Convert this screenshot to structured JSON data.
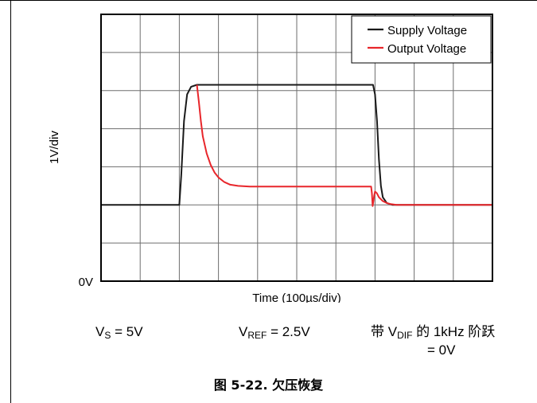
{
  "chart_data": {
    "type": "line",
    "title": "",
    "xlabel": "Time (100µs/div)",
    "ylabel": "1V/div",
    "y_zero_label": "0V",
    "x_divisions": 10,
    "y_divisions": 7,
    "xlim": [
      0,
      10
    ],
    "ylim": [
      0,
      7
    ],
    "grid": true,
    "legend_position": "top-right",
    "series": [
      {
        "name": "Supply Voltage",
        "color": "#1a1a1a",
        "x": [
          0,
          2.0,
          2.05,
          2.12,
          2.2,
          2.3,
          2.45,
          2.6,
          3.0,
          6.9,
          6.95,
          7.0,
          7.05,
          7.1,
          7.15,
          7.2,
          7.3,
          7.45,
          7.6,
          10
        ],
        "y": [
          2.0,
          2.0,
          2.8,
          4.2,
          4.9,
          5.1,
          5.15,
          5.15,
          5.15,
          5.15,
          5.15,
          4.9,
          4.2,
          3.2,
          2.5,
          2.2,
          2.05,
          2.0,
          2.0,
          2.0
        ]
      },
      {
        "name": "Output Voltage",
        "color": "#e8262b",
        "x": [
          2.45,
          2.5,
          2.55,
          2.6,
          2.7,
          2.8,
          2.9,
          3.0,
          3.15,
          3.3,
          3.5,
          3.8,
          4.2,
          6.9,
          6.92,
          6.94,
          6.96,
          6.98,
          7.0,
          7.05,
          7.1,
          7.2,
          7.3,
          7.4,
          7.55,
          7.7,
          10
        ],
        "y": [
          5.15,
          4.7,
          4.2,
          3.8,
          3.35,
          3.05,
          2.85,
          2.72,
          2.6,
          2.53,
          2.5,
          2.48,
          2.48,
          2.48,
          2.3,
          1.97,
          2.1,
          2.25,
          2.35,
          2.3,
          2.2,
          2.1,
          2.05,
          2.02,
          2.0,
          2.0,
          2.0
        ]
      }
    ]
  },
  "conditions": {
    "vs_main": "V",
    "vs_sub": "S",
    "vs_value": " = 5V",
    "vref_main": "V",
    "vref_sub": "REF",
    "vref_value": " = 2.5V",
    "vdif_prefix": "带 V",
    "vdif_sub": "DIF",
    "vdif_suffix": " 的 1kHz 阶跃",
    "vdif_value": "= 0V"
  },
  "caption": "图 5-22. 欠压恢复"
}
